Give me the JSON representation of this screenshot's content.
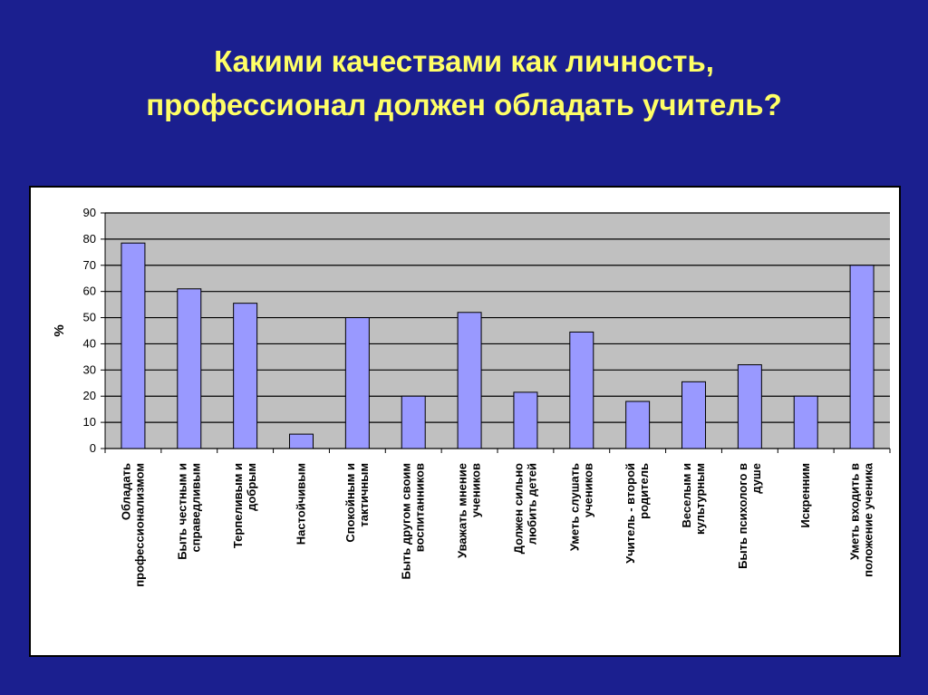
{
  "slide": {
    "title_line1": "Какими качествами как личность,",
    "title_line2": "профессионал должен обладать учитель?",
    "background_color": "#1b1f8f",
    "title_color": "#ffff66"
  },
  "chart_data": {
    "type": "bar",
    "title": "",
    "xlabel": "",
    "ylabel": "%",
    "ylim": [
      0,
      90
    ],
    "yticks": [
      0,
      10,
      20,
      30,
      40,
      50,
      60,
      70,
      80,
      90
    ],
    "grid": true,
    "plot_background": "#c0c0c0",
    "bar_color": "#9999ff",
    "categories": [
      [
        "Обладать",
        "профессионализмом"
      ],
      [
        "Быть честным и",
        "справедливым"
      ],
      [
        "Терпеливым и",
        "добрым"
      ],
      [
        "Настойчивым"
      ],
      [
        "Спокойным и",
        "тактичным"
      ],
      [
        "Быть другом своим",
        "воспитанников"
      ],
      [
        "Уважать мнение",
        "учеников"
      ],
      [
        "Должен сильно",
        "любить детей"
      ],
      [
        "Уметь слушать",
        "учеников"
      ],
      [
        "Учитель - второй",
        "родитель"
      ],
      [
        "Веселым и",
        "культурным"
      ],
      [
        "Быть психолого в",
        "душе"
      ],
      [
        "Искренним"
      ],
      [
        "Уметь входить в",
        "положение ученика"
      ]
    ],
    "values": [
      78.5,
      61,
      55.5,
      5.5,
      50,
      20,
      52,
      21.5,
      44.5,
      18,
      25.5,
      32,
      20,
      70
    ]
  }
}
